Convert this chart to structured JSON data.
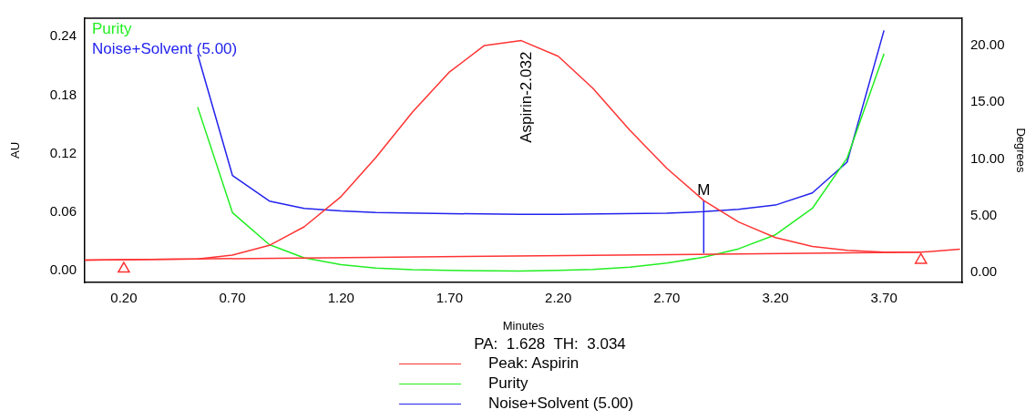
{
  "chart_data": {
    "type": "line",
    "xlabel": "Minutes",
    "ylabel": "AU",
    "y2label": "Degrees",
    "xlim": [
      0.02,
      4.06
    ],
    "xticks": [
      {
        "value": 0.2,
        "label": "0.20"
      },
      {
        "value": 0.7,
        "label": "0.70"
      },
      {
        "value": 1.2,
        "label": "1.20"
      },
      {
        "value": 1.7,
        "label": "1.70"
      },
      {
        "value": 2.2,
        "label": "2.20"
      },
      {
        "value": 2.7,
        "label": "2.70"
      },
      {
        "value": 3.2,
        "label": "3.20"
      },
      {
        "value": 3.7,
        "label": "3.70"
      }
    ],
    "ylim": [
      -0.012,
      0.259
    ],
    "yticks": [
      {
        "value": 0,
        "label": "0.00"
      },
      {
        "value": 0.06,
        "label": "0.06"
      },
      {
        "value": 0.12,
        "label": "0.12"
      },
      {
        "value": 0.18,
        "label": "0.18"
      },
      {
        "value": 0.24,
        "label": "0.24"
      }
    ],
    "y2lim": [
      -0.86,
      22.37
    ],
    "y2ticks": [
      {
        "value": 0,
        "label": "0.00"
      },
      {
        "value": 5,
        "label": "5.00"
      },
      {
        "value": 10,
        "label": "10.00"
      },
      {
        "value": 15,
        "label": "15.00"
      },
      {
        "value": 20,
        "label": "20.00"
      }
    ],
    "grid": false,
    "legend": "bottom",
    "marker": "none",
    "line_style": "solid",
    "series": [
      {
        "name": "Peak: Aspirin",
        "color": "#ff3333",
        "x": [
          0.02,
          0.54,
          0.7,
          0.87,
          1.03,
          1.2,
          1.36,
          1.53,
          1.7,
          1.86,
          2.03,
          2.2,
          2.36,
          2.53,
          2.7,
          2.87,
          3.03,
          3.2,
          3.37,
          3.53,
          3.7,
          3.87,
          4.05
        ],
        "values": [
          0.011,
          0.012,
          0.016,
          0.026,
          0.045,
          0.076,
          0.116,
          0.163,
          0.204,
          0.231,
          0.236,
          0.22,
          0.187,
          0.144,
          0.105,
          0.072,
          0.05,
          0.034,
          0.025,
          0.021,
          0.019,
          0.019,
          0.022
        ]
      },
      {
        "color": "#ff3333",
        "x": [
          0.02,
          3.87
        ],
        "values": [
          0.011,
          0.019
        ]
      },
      {
        "type": "scatter",
        "marker": "triangle",
        "color": "#ff3333",
        "x": [
          0.2,
          3.87
        ],
        "values": [
          0.002,
          0.011
        ]
      },
      {
        "name": "Purity",
        "color": "#22ee22",
        "axis": "y2",
        "x": [
          0.54,
          0.7,
          0.87,
          1.03,
          1.2,
          1.36,
          1.53,
          1.7,
          2.02,
          2.2,
          2.36,
          2.53,
          2.7,
          2.87,
          3.03,
          3.2,
          3.37,
          3.53,
          3.7
        ],
        "values": [
          14.55,
          5.28,
          2.46,
          1.3,
          0.7,
          0.41,
          0.26,
          0.2,
          0.14,
          0.2,
          0.29,
          0.49,
          0.84,
          1.36,
          2.09,
          3.33,
          5.65,
          10.06,
          19.25
        ]
      },
      {
        "name": "Noise+Solvent (5.00)",
        "color": "#2222ee",
        "axis": "y2",
        "x": [
          0.54,
          0.7,
          0.87,
          1.03,
          1.2,
          1.36,
          1.7,
          2.02,
          2.2,
          2.7,
          2.87,
          3.03,
          3.2,
          3.37,
          3.53,
          3.7
        ],
        "values": [
          19.19,
          8.55,
          6.29,
          5.65,
          5.42,
          5.28,
          5.19,
          5.13,
          5.13,
          5.22,
          5.36,
          5.57,
          5.94,
          7.01,
          9.71,
          21.3
        ]
      },
      {
        "color": "#2222ee",
        "x": [
          2.87,
          2.87
        ],
        "values": [
          0.018,
          0.072
        ]
      }
    ],
    "annotations": [
      {
        "text": "Aspirin-2.032",
        "x": 2.032,
        "y": 0.236
      },
      {
        "text": "M",
        "x": 2.87,
        "y": 0.072
      },
      "PA:  1.628  TH:  3.034"
    ]
  }
}
